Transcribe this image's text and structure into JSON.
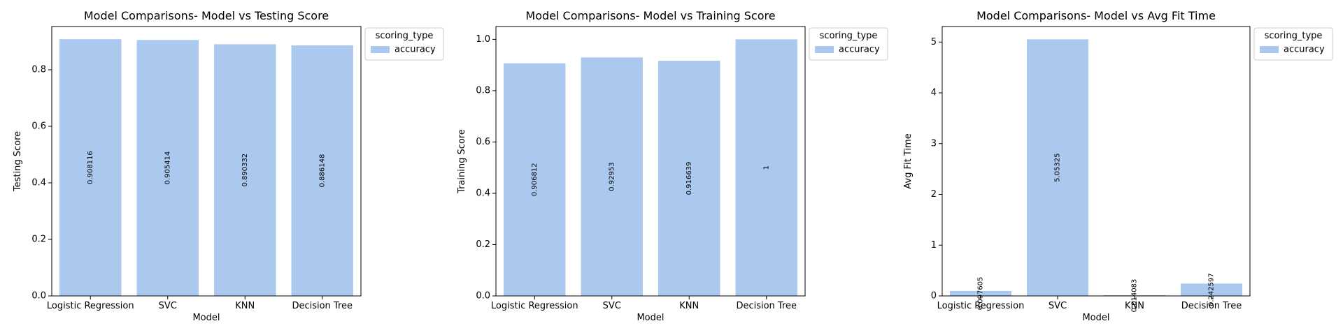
{
  "chart_data": [
    {
      "type": "bar",
      "title": "Model Comparisons- Model vs Testing Score",
      "xlabel": "Model",
      "ylabel": "Testing Score",
      "categories": [
        "Logistic Regression",
        "SVC",
        "KNN",
        "Decision Tree"
      ],
      "series": [
        {
          "name": "accuracy",
          "values": [
            0.908116,
            0.905414,
            0.890332,
            0.886148
          ]
        }
      ],
      "data_labels": [
        "0.908116",
        "0.905414",
        "0.890332",
        "0.886148"
      ],
      "ylim": [
        0,
        0.953
      ],
      "yticks": [
        0.0,
        0.2,
        0.4,
        0.6,
        0.8
      ],
      "ytick_labels": [
        "0.0",
        "0.2",
        "0.4",
        "0.6",
        "0.8"
      ],
      "legend": {
        "title": "scoring_type",
        "placement": "outside-top-right"
      },
      "grid": false,
      "bar_color": "#abc9ee"
    },
    {
      "type": "bar",
      "title": "Model Comparisons- Model vs Training Score",
      "xlabel": "Model",
      "ylabel": "Training Score",
      "categories": [
        "Logistic Regression",
        "SVC",
        "KNN",
        "Decision Tree"
      ],
      "series": [
        {
          "name": "accuracy",
          "values": [
            0.906812,
            0.92953,
            0.916639,
            1.0
          ]
        }
      ],
      "data_labels": [
        "0.906812",
        "0.92953",
        "0.916639",
        "1"
      ],
      "ylim": [
        0,
        1.05
      ],
      "yticks": [
        0.0,
        0.2,
        0.4,
        0.6,
        0.8,
        1.0
      ],
      "ytick_labels": [
        "0.0",
        "0.2",
        "0.4",
        "0.6",
        "0.8",
        "1.0"
      ],
      "legend": {
        "title": "scoring_type",
        "placement": "outside-top-right"
      },
      "grid": false,
      "bar_color": "#abc9ee"
    },
    {
      "type": "bar",
      "title": "Model Comparisons- Model vs Avg Fit Time",
      "xlabel": "Model",
      "ylabel": "Avg Fit Time",
      "categories": [
        "Logistic Regression",
        "SVC",
        "KNN",
        "Decision Tree"
      ],
      "series": [
        {
          "name": "accuracy",
          "values": [
            0.097605,
            5.05325,
            0.014083,
            0.242597
          ]
        }
      ],
      "data_labels": [
        "0.097605",
        "5.05325",
        "0.014083",
        "0.242597"
      ],
      "ylim": [
        0,
        5.306
      ],
      "yticks": [
        0,
        1,
        2,
        3,
        4,
        5
      ],
      "ytick_labels": [
        "0",
        "1",
        "2",
        "3",
        "4",
        "5"
      ],
      "legend": {
        "title": "scoring_type",
        "placement": "outside-top-right"
      },
      "grid": false,
      "bar_color": "#abc9ee"
    }
  ]
}
